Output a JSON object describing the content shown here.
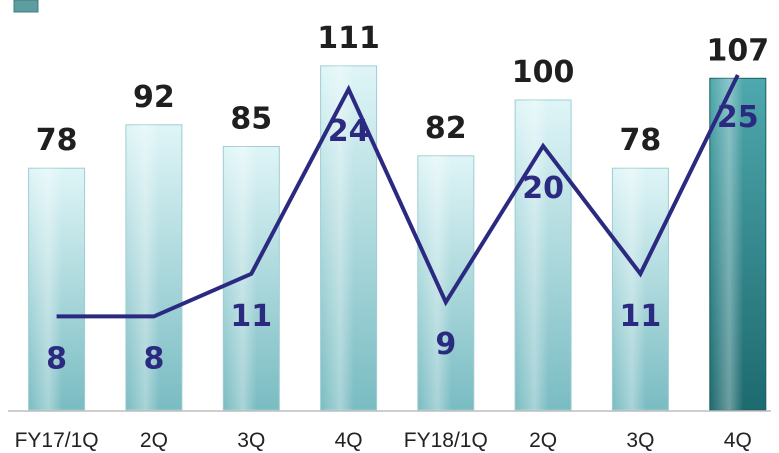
{
  "chart_data": {
    "type": "bar",
    "categories": [
      "FY17/1Q",
      "2Q",
      "3Q",
      "4Q",
      "FY18/1Q",
      "2Q",
      "3Q",
      "4Q"
    ],
    "series": [
      {
        "type": "bar",
        "values": [
          78,
          92,
          85,
          111,
          82,
          100,
          78,
          107
        ]
      },
      {
        "type": "line",
        "values": [
          8,
          8,
          11,
          24,
          9,
          20,
          11,
          25
        ]
      }
    ],
    "highlighted_bar_index": 7,
    "colors": {
      "bar_light_top": "#dff5f7",
      "bar_light_bottom": "#79bcc2",
      "bar_highlight_top": "#4ea8ad",
      "bar_highlight_bottom": "#1d6a6f",
      "line": "#2b2a80",
      "legend_swatch": "#5d9c9f"
    }
  }
}
